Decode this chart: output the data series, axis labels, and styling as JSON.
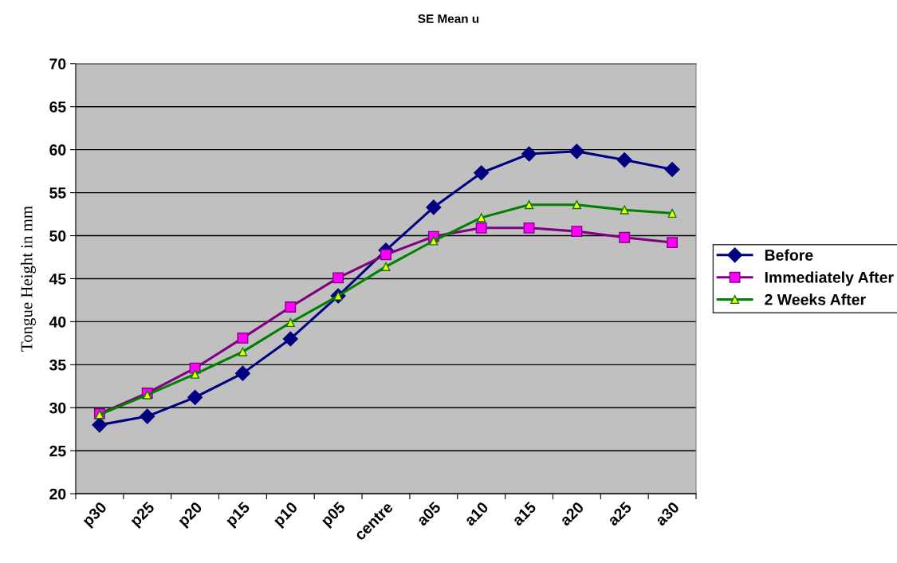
{
  "chart_data": {
    "type": "line",
    "title": "SE Mean u",
    "ylabel": "Tongue Height in mm",
    "categories": [
      "p30",
      "p25",
      "p20",
      "p15",
      "p10",
      "p05",
      "centre",
      "a05",
      "a10",
      "a15",
      "a20",
      "a25",
      "a30"
    ],
    "series": [
      {
        "name": "Before",
        "color": "#000080",
        "marker": "diamond",
        "values": [
          28.0,
          29.0,
          31.2,
          34.0,
          38.0,
          43.0,
          48.3,
          53.3,
          57.3,
          59.5,
          59.8,
          58.8,
          57.7
        ]
      },
      {
        "name": "Immediately After",
        "color": "#800080",
        "marker": "square",
        "values": [
          29.3,
          31.7,
          34.6,
          38.1,
          41.7,
          45.1,
          47.8,
          49.9,
          50.9,
          50.9,
          50.5,
          49.8,
          49.2
        ]
      },
      {
        "name": "2 Weeks After",
        "color": "#008000",
        "marker": "triangle",
        "values": [
          29.2,
          31.5,
          33.9,
          36.5,
          39.9,
          43.0,
          46.4,
          49.4,
          52.1,
          53.6,
          53.6,
          53.0,
          52.6
        ]
      }
    ],
    "ylim": [
      20,
      70
    ],
    "yticks": [
      20,
      25,
      30,
      35,
      40,
      45,
      50,
      55,
      60,
      65,
      70
    ],
    "grid": "y",
    "legend": "right"
  }
}
